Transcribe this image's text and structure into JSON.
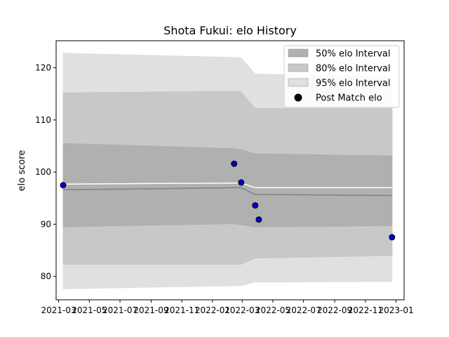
{
  "chart_data": {
    "type": "area",
    "title": "Shota Fukui: elo History",
    "xlabel": "",
    "ylabel": "elo score",
    "xlim": [
      "2021-02-24",
      "2023-01-17"
    ],
    "ylim": [
      75.5,
      125.2
    ],
    "x_ticks": [
      "2021-03",
      "2021-05",
      "2021-07",
      "2021-09",
      "2021-11",
      "2022-01",
      "2022-03",
      "2022-05",
      "2022-07",
      "2022-09",
      "2022-11",
      "2023-01"
    ],
    "y_ticks": [
      80,
      90,
      100,
      110,
      120
    ],
    "grid": false,
    "legend_position": "top-right",
    "legend": [
      "50% elo Interval",
      "80% elo Interval",
      "95% elo Interval",
      "Post Match elo"
    ],
    "x": [
      "2021-03-10",
      "2022-02-13",
      "2022-02-27",
      "2022-03-27",
      "2022-04-03",
      "2022-12-24"
    ],
    "series": [
      {
        "name": "50% elo Interval",
        "lower": [
          89.5,
          90.1,
          89.9,
          89.5,
          89.5,
          89.7
        ],
        "upper": [
          105.5,
          104.5,
          104.3,
          103.5,
          103.5,
          103.1
        ],
        "color": "#b0b0b0"
      },
      {
        "name": "80% elo Interval",
        "lower": [
          82.3,
          82.3,
          82.3,
          83.5,
          83.5,
          84.0
        ],
        "upper": [
          115.2,
          115.5,
          115.4,
          112.2,
          112.2,
          112.2
        ],
        "color": "#c8c8c8"
      },
      {
        "name": "95% elo Interval",
        "lower": [
          77.6,
          78.2,
          78.2,
          78.9,
          78.9,
          79.0
        ],
        "upper": [
          122.8,
          122.0,
          121.9,
          118.8,
          118.8,
          118.2
        ],
        "color": "#e0e0e0"
      }
    ],
    "median_line": [
      96.6,
      97.0,
      97.0,
      95.7,
      95.7,
      95.5
    ],
    "mean_line": [
      97.7,
      97.9,
      97.9,
      97.0,
      97.0,
      97.0
    ],
    "post_match_elo": [
      {
        "date": "2021-03-10",
        "elo": 97.5
      },
      {
        "date": "2022-02-13",
        "elo": 101.6
      },
      {
        "date": "2022-02-27",
        "elo": 98.0
      },
      {
        "date": "2022-03-27",
        "elo": 93.6
      },
      {
        "date": "2022-04-03",
        "elo": 90.9
      },
      {
        "date": "2022-12-24",
        "elo": 87.5
      }
    ],
    "colors": {
      "points": "#0000cc",
      "median": "#808080",
      "mean": "#ffffff",
      "legend_point": "#000000"
    }
  }
}
